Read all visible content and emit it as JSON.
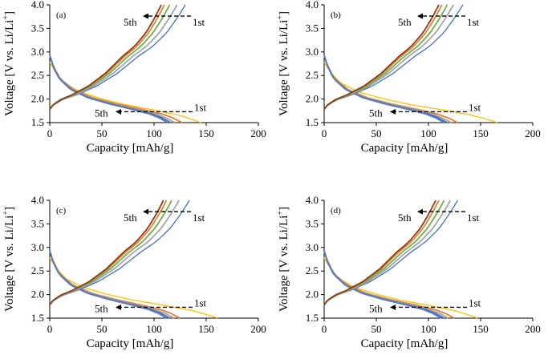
{
  "chart_data": [
    {
      "type": "line",
      "panel_label": "(a)",
      "xlabel": "Capacity [mAh/g]",
      "ylabel": [
        "Voltage [V vs. Li/Li",
        "+",
        "]"
      ],
      "xlim": [
        0,
        200
      ],
      "ylim": [
        1.5,
        4.0
      ],
      "xticks": [
        "0",
        "50",
        "100",
        "150",
        "200"
      ],
      "yticks": [
        "1.5",
        "2.0",
        "2.5",
        "3.0",
        "3.5",
        "4.0"
      ],
      "grid": false,
      "annotations": {
        "charge_first": "1st",
        "charge_fifth": "5th",
        "discharge_first": "1st",
        "discharge_fifth": "5th"
      },
      "charge_end_capacity": [
        130,
        122,
        115,
        110,
        107
      ],
      "discharge_end_capacity": [
        145,
        127,
        120,
        116,
        113
      ]
    },
    {
      "type": "line",
      "panel_label": "(b)",
      "xlabel": "Capacity [mAh/g]",
      "ylabel": [
        "Voltage [V vs. Li/Li",
        "+",
        "]"
      ],
      "xlim": [
        0,
        200
      ],
      "ylim": [
        1.5,
        4.0
      ],
      "xticks": [
        "0",
        "50",
        "100",
        "150",
        "200"
      ],
      "yticks": [
        "1.5",
        "2.0",
        "2.5",
        "3.0",
        "3.5",
        "4.0"
      ],
      "grid": false,
      "annotations": {
        "charge_first": "1st",
        "charge_fifth": "5th",
        "discharge_first": "1st",
        "discharge_fifth": "5th"
      },
      "charge_end_capacity": [
        133,
        124,
        118,
        113,
        110
      ],
      "discharge_end_capacity": [
        166,
        128,
        122,
        118,
        115
      ]
    },
    {
      "type": "line",
      "panel_label": "(c)",
      "xlabel": "Capacity [mAh/g]",
      "ylabel": [
        "Voltage [V vs. Li/Li",
        "+",
        "]"
      ],
      "xlim": [
        0,
        200
      ],
      "ylim": [
        1.5,
        4.0
      ],
      "xticks": [
        "0",
        "50",
        "100",
        "150",
        "200"
      ],
      "yticks": [
        "1.5",
        "2.0",
        "2.5",
        "3.0",
        "3.5",
        "4.0"
      ],
      "grid": false,
      "annotations": {
        "charge_first": "1st",
        "charge_fifth": "5th",
        "discharge_first": "1st",
        "discharge_fifth": "5th"
      },
      "charge_end_capacity": [
        134,
        124,
        117,
        112,
        109
      ],
      "discharge_end_capacity": [
        161,
        125,
        119,
        115,
        112
      ]
    },
    {
      "type": "line",
      "panel_label": "(d)",
      "xlabel": "Capacity [mAh/g]",
      "ylabel": [
        "Voltage [V vs. Li/Li",
        "+",
        "]"
      ],
      "xlim": [
        0,
        200
      ],
      "ylim": [
        1.5,
        4.0
      ],
      "xticks": [
        "0",
        "50",
        "100",
        "150",
        "200"
      ],
      "yticks": [
        "1.5",
        "2.0",
        "2.5",
        "3.0",
        "3.5",
        "4.0"
      ],
      "grid": false,
      "annotations": {
        "charge_first": "1st",
        "charge_fifth": "5th",
        "discharge_first": "1st",
        "discharge_fifth": "5th"
      },
      "charge_end_capacity": [
        128,
        121,
        115,
        110,
        107
      ],
      "discharge_end_capacity": [
        147,
        125,
        119,
        115,
        112
      ]
    }
  ],
  "cycle_colors": {
    "charge": [
      "#4472c4",
      "#a5a5a5",
      "#70ad47",
      "#ed7d31",
      "#7f3f1f"
    ],
    "discharge": [
      "#ffc000",
      "#ed7d31",
      "#a5a5a5",
      "#4472c4",
      "#5b7bbf"
    ]
  }
}
